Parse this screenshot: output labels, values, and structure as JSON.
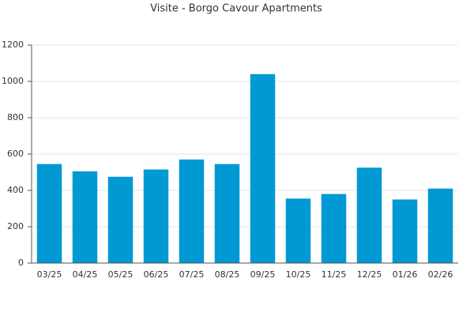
{
  "chart_data": {
    "type": "bar",
    "title": "Visite - Borgo Cavour Apartments",
    "categories": [
      "03/25",
      "04/25",
      "05/25",
      "06/25",
      "07/25",
      "08/25",
      "09/25",
      "10/25",
      "11/25",
      "12/25",
      "01/26",
      "02/26"
    ],
    "values": [
      545,
      505,
      475,
      515,
      570,
      545,
      1040,
      355,
      380,
      525,
      350,
      410
    ],
    "color": "#0099d4",
    "ylim": [
      0,
      1200
    ],
    "yticks": [
      0,
      200,
      400,
      600,
      800,
      1000,
      1200
    ],
    "grid": true
  }
}
